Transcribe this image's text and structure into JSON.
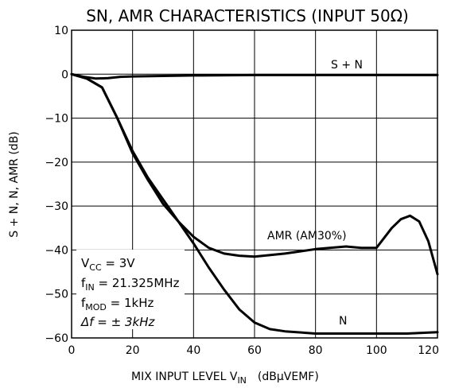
{
  "chart_data": {
    "type": "line",
    "title": "SN, AMR CHARACTERISTICS (INPUT 50Ω)",
    "xlabel": "MIX INPUT LEVEL  V",
    "xlabel_sub": "IN",
    "xlabel_unit": "(dBμVEMF)",
    "ylabel": "S + N, N, AMR   (dB)",
    "xlim": [
      0,
      120
    ],
    "ylim": [
      -60,
      10
    ],
    "x_ticks": [
      "0",
      "20",
      "40",
      "60",
      "80",
      "100",
      "120"
    ],
    "y_ticks": [
      "10",
      "0",
      "−10",
      "−20",
      "−30",
      "−40",
      "−50",
      "−60"
    ],
    "grid": true,
    "series": [
      {
        "name": "S + N",
        "x": [
          0,
          4,
          8,
          12,
          16,
          20,
          30,
          40,
          60,
          80,
          100,
          120
        ],
        "y": [
          0,
          -0.6,
          -1.0,
          -0.9,
          -0.6,
          -0.5,
          -0.4,
          -0.3,
          -0.2,
          -0.2,
          -0.2,
          -0.2
        ]
      },
      {
        "name": "AMR (AM30%)",
        "x": [
          0,
          5,
          10,
          15,
          20,
          25,
          30,
          35,
          40,
          45,
          50,
          55,
          60,
          70,
          80,
          90,
          95,
          100,
          105,
          108,
          111,
          114,
          117,
          120
        ],
        "y": [
          0,
          -1,
          -3,
          -10,
          -18,
          -24,
          -29.5,
          -33.5,
          -37,
          -39.5,
          -40.8,
          -41.3,
          -41.5,
          -40.8,
          -39.8,
          -39.2,
          -39.5,
          -39.5,
          -35,
          -33,
          -32.2,
          -33.5,
          -38,
          -45.5
        ]
      },
      {
        "name": "N",
        "x": [
          0,
          5,
          10,
          15,
          20,
          25,
          30,
          35,
          40,
          45,
          50,
          55,
          60,
          65,
          70,
          80,
          90,
          100,
          110,
          120
        ],
        "y": [
          0,
          -1,
          -3,
          -10,
          -17.5,
          -23.5,
          -28.5,
          -33.5,
          -38.5,
          -44,
          -49,
          -53.5,
          -56.5,
          -58,
          -58.5,
          -59,
          -59,
          -59,
          -59,
          -58.7
        ]
      }
    ],
    "annotations": {
      "sn_label": "S + N",
      "amr_label": "AMR (AM30%)",
      "n_label": "N"
    },
    "conditions": {
      "vcc_main": "V",
      "vcc_sub": "CC",
      "vcc_rest": " = 3V",
      "fin_main": "f",
      "fin_sub": "IN",
      "fin_rest": " = 21.325MHz",
      "fmod_main": "f",
      "fmod_sub": "MOD",
      "fmod_rest": " = 1kHz",
      "df_text": "Δf = ± 3kHz"
    }
  }
}
